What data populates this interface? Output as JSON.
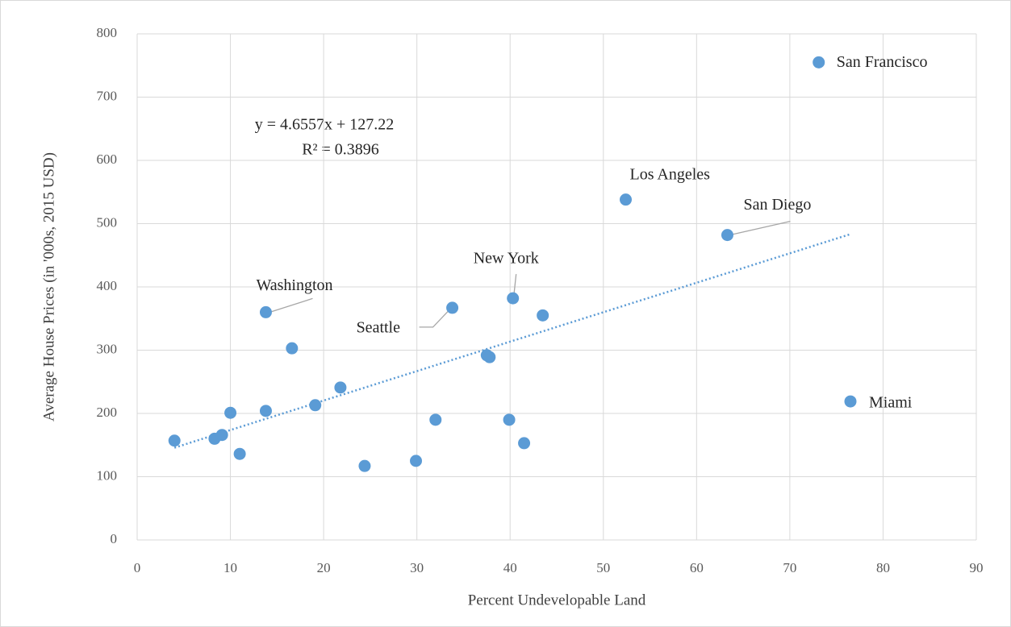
{
  "chart_data": {
    "type": "scatter",
    "xlabel": "Percent Undevelopable Land",
    "ylabel": "Average House Prices (in '000s, 2015 USD)",
    "xlim": [
      0,
      90
    ],
    "xticks": [
      0,
      10,
      20,
      30,
      40,
      50,
      60,
      70,
      80,
      90
    ],
    "ylim": [
      0,
      800
    ],
    "yticks": [
      0,
      100,
      200,
      300,
      400,
      500,
      600,
      700,
      800
    ],
    "grid": true,
    "series": [
      {
        "color": "#5b9bd5",
        "x": [
          4,
          8.3,
          9.1,
          10,
          11,
          13.8,
          13.8,
          16.6,
          19.1,
          21.8,
          24.4,
          29.9,
          32,
          33.8,
          37.5,
          37.8,
          39.9,
          40.3,
          41.5,
          43.5,
          52.4,
          63.3,
          73.1,
          76.5
        ],
        "values": [
          157,
          160,
          166,
          201,
          136,
          360,
          204,
          303,
          213,
          241,
          117,
          125,
          190,
          367,
          292,
          289,
          190,
          382,
          153,
          355,
          538,
          482,
          755,
          219
        ],
        "point_labels": [
          null,
          null,
          null,
          null,
          null,
          "Washington",
          null,
          null,
          null,
          null,
          null,
          null,
          null,
          "Seattle",
          null,
          null,
          null,
          "New York",
          null,
          null,
          "Los Angeles",
          "San Diego",
          "San Francisco",
          "Miami"
        ]
      }
    ],
    "trendline": {
      "slope": 4.6557,
      "intercept": 127.22,
      "equation": "y = 4.6557x + 127.22",
      "r_squared": 0.3896,
      "r_squared_label": "R² = 0.3896"
    }
  }
}
